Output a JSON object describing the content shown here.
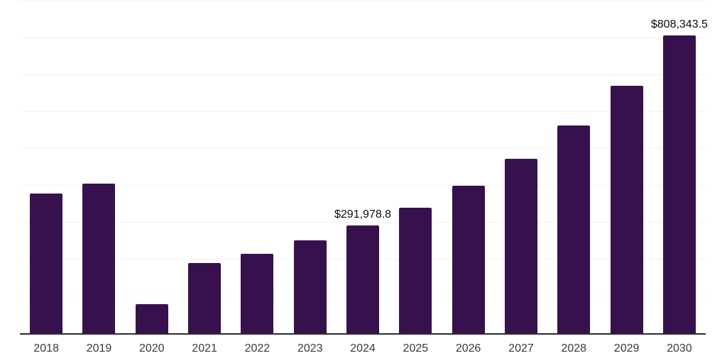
{
  "chart_data": {
    "type": "bar",
    "title": "",
    "xlabel": "",
    "ylabel": "",
    "categories": [
      "2018",
      "2019",
      "2020",
      "2021",
      "2022",
      "2023",
      "2024",
      "2025",
      "2026",
      "2027",
      "2028",
      "2029",
      "2030"
    ],
    "values": [
      378300,
      405200,
      78800,
      190400,
      216000,
      251300,
      291978.8,
      340900,
      400300,
      473100,
      564000,
      671700,
      808343.5
    ],
    "data_labels": {
      "2024": "$291,978.8",
      "2030": "$808,343.5"
    },
    "ylim": [
      0,
      900000
    ],
    "gridline_step": 100000,
    "grid": "horizontal",
    "legend": "none",
    "colors": {
      "bar": "#37114e",
      "gridline": "#f2f2f2",
      "axis_line": "#2d2d2d",
      "data_label": "#0b0b0b",
      "tick_label": "#3a3a3a",
      "background": "#ffffff"
    }
  }
}
